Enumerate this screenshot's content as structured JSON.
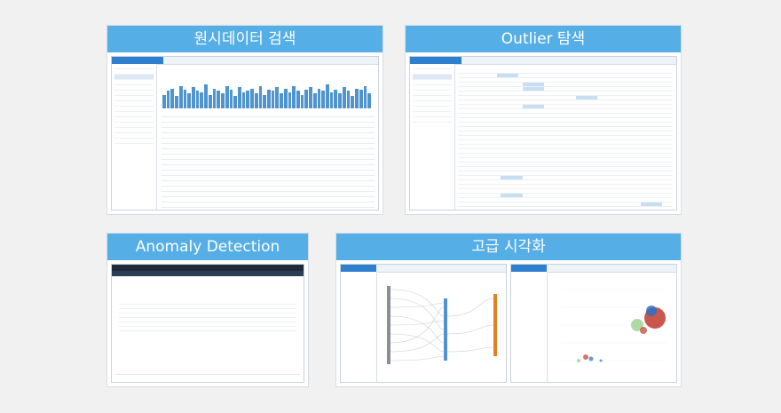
{
  "cards": {
    "raw_search": {
      "title": "원시데이터 검색"
    },
    "outlier": {
      "title": "Outlier 탐색"
    },
    "anomaly": {
      "title": "Anomaly Detection"
    },
    "viz": {
      "title": "고급 시각화"
    }
  },
  "colors": {
    "title_bar": "#55aee5",
    "chart_bar": "#4f93cf",
    "highlight_cell": "#c8def2",
    "dark_header": "#1e2a3a",
    "bubble_red": "#c0392b",
    "bubble_blue": "#2e6fc4"
  },
  "histogram_levels": [
    0.55,
    0.7,
    0.8,
    0.5,
    0.9,
    0.75,
    0.6,
    0.85,
    0.7,
    0.65,
    0.95,
    0.55,
    0.8,
    0.7,
    0.6,
    0.9,
    0.75,
    0.5,
    0.85,
    0.65,
    0.7,
    0.8,
    0.6,
    0.9,
    0.55,
    0.75,
    0.7,
    0.85,
    0.6,
    0.8,
    0.65,
    0.9,
    0.7,
    0.55,
    0.75,
    0.85,
    0.6,
    0.8,
    0.7,
    0.95,
    0.65,
    0.75,
    0.6,
    0.85,
    0.7,
    0.5,
    0.8,
    0.75,
    0.9,
    0.6
  ]
}
